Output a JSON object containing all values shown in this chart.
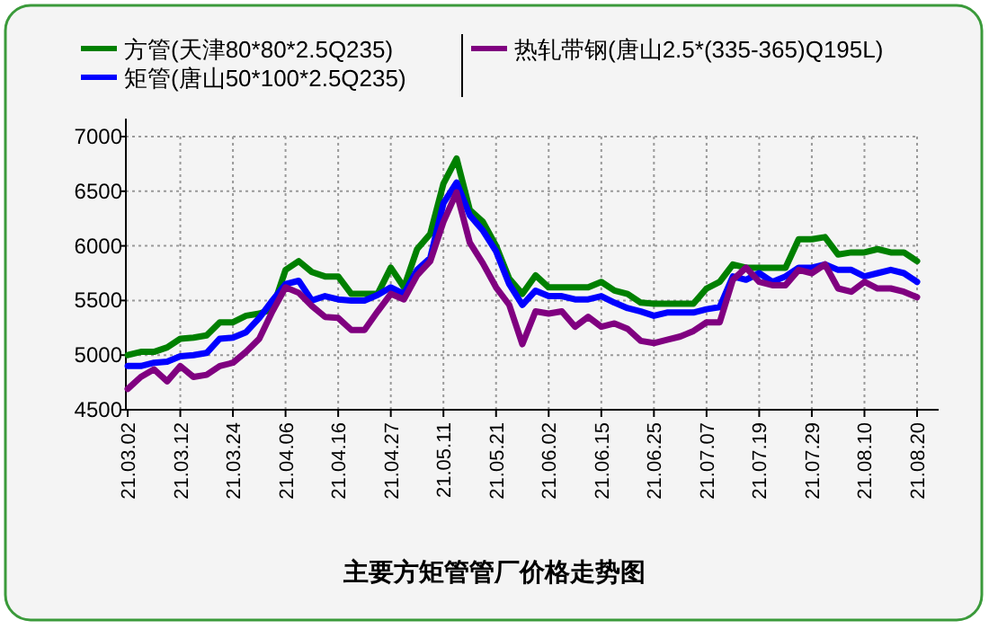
{
  "chart_data": {
    "type": "line",
    "title": "主要方矩管管厂价格走势图",
    "categories": [
      "21.03.02",
      null,
      null,
      null,
      "21.03.12",
      null,
      null,
      null,
      "21.03.24",
      null,
      null,
      null,
      "21.04.06",
      null,
      null,
      null,
      "21.04.16",
      null,
      null,
      null,
      "21.04.27",
      null,
      null,
      null,
      "21.05.11",
      null,
      null,
      null,
      "21.05.21",
      null,
      null,
      null,
      "21.06.02",
      null,
      null,
      null,
      "21.06.15",
      null,
      null,
      null,
      "21.06.25",
      null,
      null,
      null,
      "21.07.07",
      null,
      null,
      null,
      "21.07.19",
      null,
      null,
      null,
      "21.07.29",
      null,
      null,
      null,
      "21.08.10",
      null,
      null,
      null,
      "21.08.20"
    ],
    "series": [
      {
        "name": "方管(天津80*80*2.5Q235)",
        "color": "#008000",
        "values": [
          5000,
          5030,
          5030,
          5070,
          5150,
          5160,
          5180,
          5300,
          5300,
          5360,
          5380,
          5420,
          5780,
          5860,
          5760,
          5720,
          5720,
          5560,
          5560,
          5560,
          5800,
          5620,
          5970,
          6110,
          6570,
          6800,
          6330,
          6220,
          6000,
          5700,
          5560,
          5730,
          5620,
          5620,
          5620,
          5620,
          5670,
          5590,
          5560,
          5480,
          5470,
          5470,
          5470,
          5470,
          5610,
          5670,
          5830,
          5800,
          5800,
          5800,
          5800,
          6060,
          6060,
          6080,
          5920,
          5940,
          5940,
          5970,
          5940,
          5940,
          5860
        ]
      },
      {
        "name": "矩管(唐山50*100*2.5Q235)",
        "color": "#0000ff",
        "values": [
          4900,
          4900,
          4930,
          4940,
          4990,
          5000,
          5020,
          5150,
          5160,
          5210,
          5340,
          5500,
          5650,
          5680,
          5500,
          5540,
          5510,
          5500,
          5500,
          5550,
          5620,
          5560,
          5780,
          5890,
          6390,
          6580,
          6280,
          6140,
          5950,
          5650,
          5460,
          5590,
          5540,
          5540,
          5510,
          5510,
          5540,
          5480,
          5430,
          5400,
          5360,
          5390,
          5390,
          5390,
          5420,
          5440,
          5720,
          5690,
          5750,
          5670,
          5720,
          5800,
          5800,
          5830,
          5780,
          5780,
          5720,
          5750,
          5780,
          5750,
          5670
        ]
      },
      {
        "name": "热轧带钢(唐山2.5*(335-365)Q195L)",
        "color": "#800080",
        "values": [
          4690,
          4800,
          4870,
          4760,
          4900,
          4800,
          4820,
          4900,
          4930,
          5030,
          5150,
          5400,
          5620,
          5570,
          5450,
          5350,
          5340,
          5230,
          5230,
          5400,
          5560,
          5510,
          5730,
          5860,
          6220,
          6490,
          6030,
          5840,
          5620,
          5460,
          5100,
          5400,
          5380,
          5400,
          5260,
          5350,
          5260,
          5290,
          5240,
          5130,
          5110,
          5140,
          5170,
          5220,
          5300,
          5300,
          5690,
          5800,
          5670,
          5640,
          5640,
          5780,
          5750,
          5830,
          5610,
          5580,
          5670,
          5610,
          5610,
          5580,
          5530
        ]
      }
    ],
    "ylim": [
      4500,
      7000
    ],
    "yticks": [
      4500,
      5000,
      5500,
      6000,
      6500,
      7000
    ],
    "grid": true,
    "legend": "top"
  }
}
